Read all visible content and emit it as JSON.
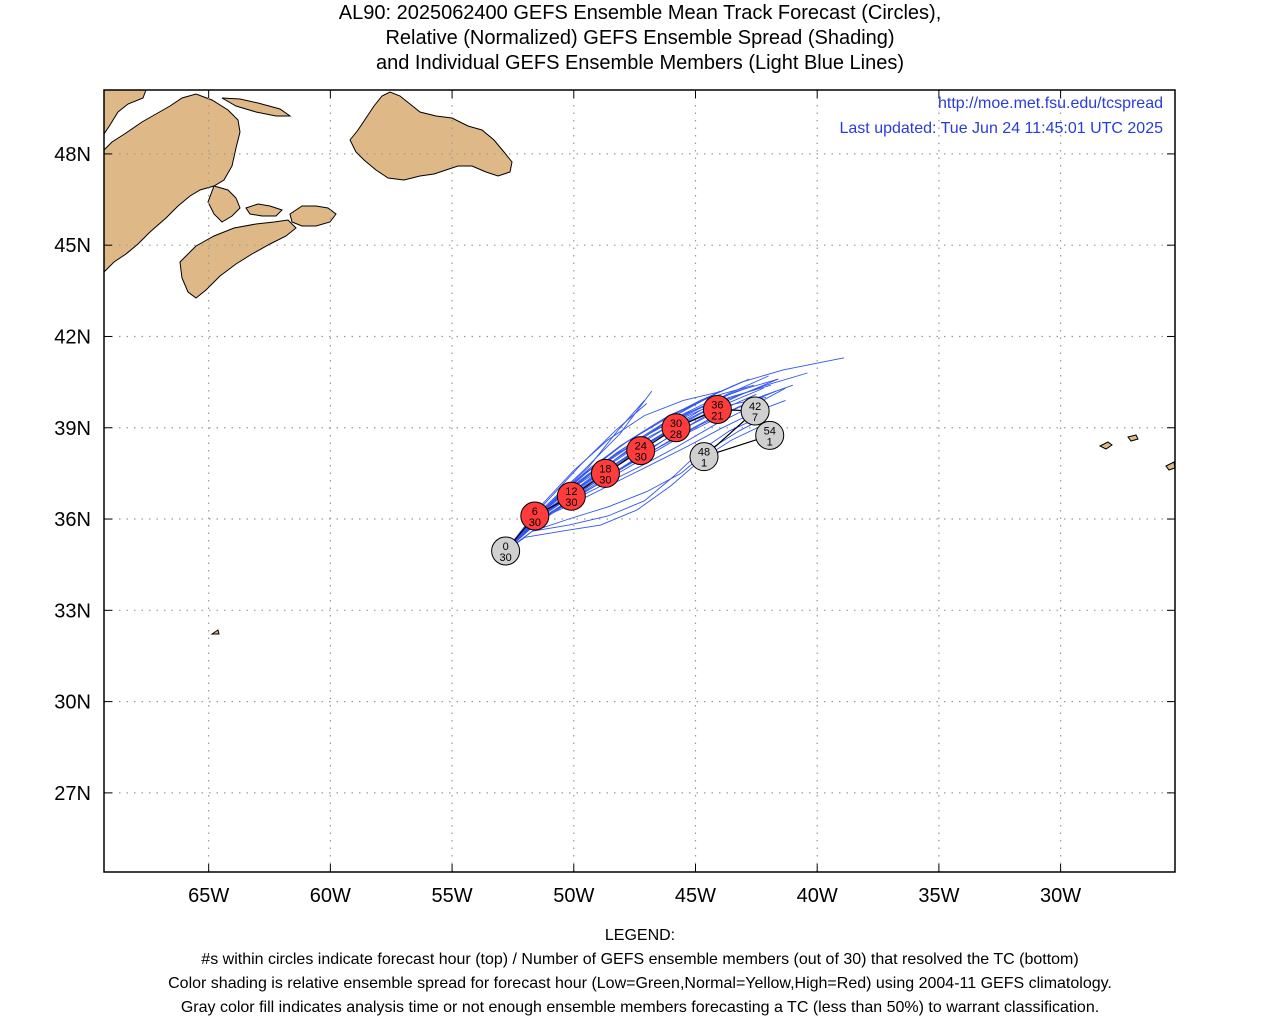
{
  "title": {
    "line1": "AL90: 2025062400 GEFS Ensemble Mean Track Forecast (Circles),",
    "line2": "Relative (Normalized) GEFS Ensemble Spread (Shading)",
    "line3": "and Individual GEFS Ensemble Members (Light Blue Lines)"
  },
  "info": {
    "url": "http://moe.met.fsu.edu/tcspread",
    "updated": "Last updated: Tue Jun 24 11:45:01 UTC 2025"
  },
  "axes": {
    "x_ticks": [
      {
        "label": "65W",
        "lon": -65
      },
      {
        "label": "60W",
        "lon": -60
      },
      {
        "label": "55W",
        "lon": -55
      },
      {
        "label": "50W",
        "lon": -50
      },
      {
        "label": "45W",
        "lon": -45
      },
      {
        "label": "40W",
        "lon": -40
      },
      {
        "label": "35W",
        "lon": -35
      },
      {
        "label": "30W",
        "lon": -30
      }
    ],
    "y_ticks": [
      {
        "label": "48N",
        "lat": 48
      },
      {
        "label": "45N",
        "lat": 45
      },
      {
        "label": "42N",
        "lat": 42
      },
      {
        "label": "39N",
        "lat": 39
      },
      {
        "label": "36N",
        "lat": 36
      },
      {
        "label": "33N",
        "lat": 33
      },
      {
        "label": "30N",
        "lat": 30
      },
      {
        "label": "27N",
        "lat": 27
      }
    ],
    "lon_range": [
      -69.3,
      -25.3
    ],
    "lat_range": [
      24.4,
      50.1
    ]
  },
  "colors": {
    "land": "#deb887",
    "member_line": "#3355ee",
    "spread_high": "#ff3b3b",
    "gray_fill": "#d0d0d0",
    "info_text": "#2a3bdc"
  },
  "track": [
    {
      "hour": "0",
      "members": "30",
      "lon": -52.8,
      "lat": 34.95,
      "fill": "gray"
    },
    {
      "hour": "6",
      "members": "30",
      "lon": -51.6,
      "lat": 36.1,
      "fill": "red"
    },
    {
      "hour": "12",
      "members": "30",
      "lon": -50.1,
      "lat": 36.75,
      "fill": "red"
    },
    {
      "hour": "18",
      "members": "30",
      "lon": -48.7,
      "lat": 37.5,
      "fill": "red"
    },
    {
      "hour": "24",
      "members": "30",
      "lon": -47.25,
      "lat": 38.25,
      "fill": "red"
    },
    {
      "hour": "30",
      "members": "28",
      "lon": -45.8,
      "lat": 39.0,
      "fill": "red"
    },
    {
      "hour": "36",
      "members": "21",
      "lon": -44.1,
      "lat": 39.6,
      "fill": "red"
    },
    {
      "hour": "42",
      "members": "7",
      "lon": -42.55,
      "lat": 39.55,
      "fill": "gray"
    },
    {
      "hour": "48",
      "members": "1",
      "lon": -44.65,
      "lat": 38.05,
      "fill": "gray"
    },
    {
      "hour": "54",
      "members": "1",
      "lon": -41.95,
      "lat": 38.75,
      "fill": "gray"
    }
  ],
  "members": [
    [
      [
        -52.8,
        34.95
      ],
      [
        -51.2,
        36.3
      ],
      [
        -49.6,
        37.3
      ],
      [
        -48.0,
        38.3
      ],
      [
        -46.4,
        39.1
      ],
      [
        -44.6,
        39.8
      ],
      [
        -42.9,
        40.3
      ]
    ],
    [
      [
        -52.8,
        34.95
      ],
      [
        -51.0,
        36.5
      ],
      [
        -49.3,
        37.7
      ],
      [
        -47.7,
        38.6
      ],
      [
        -46.1,
        39.4
      ],
      [
        -44.4,
        40.0
      ],
      [
        -42.6,
        40.4
      ]
    ],
    [
      [
        -52.8,
        34.95
      ],
      [
        -51.3,
        36.2
      ],
      [
        -49.9,
        37.0
      ],
      [
        -48.4,
        37.9
      ],
      [
        -46.9,
        38.8
      ],
      [
        -45.3,
        39.5
      ],
      [
        -43.6,
        40.0
      ],
      [
        -41.9,
        40.4
      ]
    ],
    [
      [
        -52.8,
        34.95
      ],
      [
        -51.5,
        36.0
      ],
      [
        -50.1,
        36.8
      ],
      [
        -48.6,
        37.6
      ],
      [
        -47.1,
        38.4
      ],
      [
        -45.6,
        39.1
      ],
      [
        -43.9,
        39.7
      ],
      [
        -42.1,
        40.0
      ]
    ],
    [
      [
        -52.8,
        34.95
      ],
      [
        -51.1,
        36.4
      ],
      [
        -49.5,
        37.5
      ],
      [
        -47.9,
        38.5
      ],
      [
        -46.2,
        39.3
      ],
      [
        -44.5,
        40.0
      ],
      [
        -42.8,
        40.6
      ]
    ],
    [
      [
        -52.8,
        34.95
      ],
      [
        -51.4,
        36.1
      ],
      [
        -50.0,
        36.9
      ],
      [
        -48.5,
        37.8
      ],
      [
        -47.0,
        38.6
      ],
      [
        -45.4,
        39.4
      ],
      [
        -43.7,
        40.1
      ],
      [
        -42.0,
        40.7
      ]
    ],
    [
      [
        -52.8,
        34.95
      ],
      [
        -51.6,
        35.8
      ],
      [
        -50.3,
        36.5
      ],
      [
        -48.9,
        37.2
      ],
      [
        -47.4,
        38.0
      ],
      [
        -45.9,
        38.8
      ],
      [
        -44.2,
        39.5
      ],
      [
        -42.5,
        40.1
      ]
    ],
    [
      [
        -52.8,
        34.95
      ],
      [
        -51.2,
        36.35
      ],
      [
        -49.7,
        37.4
      ],
      [
        -48.1,
        38.4
      ],
      [
        -46.5,
        39.2
      ],
      [
        -44.8,
        39.9
      ],
      [
        -43.1,
        40.5
      ],
      [
        -41.4,
        40.9
      ],
      [
        -38.9,
        41.3
      ]
    ],
    [
      [
        -52.8,
        34.95
      ],
      [
        -51.3,
        36.25
      ],
      [
        -49.8,
        37.2
      ],
      [
        -48.3,
        38.1
      ],
      [
        -46.7,
        38.9
      ],
      [
        -45.0,
        39.6
      ],
      [
        -43.3,
        40.2
      ],
      [
        -41.6,
        40.6
      ]
    ],
    [
      [
        -52.8,
        34.95
      ],
      [
        -51.5,
        36.0
      ],
      [
        -50.0,
        36.9
      ],
      [
        -48.5,
        37.7
      ],
      [
        -47.0,
        38.5
      ],
      [
        -45.5,
        39.2
      ],
      [
        -43.8,
        39.9
      ],
      [
        -42.1,
        40.4
      ],
      [
        -40.4,
        40.8
      ]
    ],
    [
      [
        -52.8,
        34.95
      ],
      [
        -51.2,
        36.4
      ],
      [
        -49.6,
        37.6
      ],
      [
        -48.1,
        38.8
      ],
      [
        -46.8,
        40.2
      ]
    ],
    [
      [
        -52.8,
        34.95
      ],
      [
        -51.0,
        36.5
      ],
      [
        -49.4,
        37.7
      ],
      [
        -48.2,
        38.9
      ],
      [
        -47.1,
        39.9
      ]
    ],
    [
      [
        -52.8,
        34.95
      ],
      [
        -51.7,
        35.6
      ],
      [
        -50.2,
        35.8
      ],
      [
        -48.6,
        36.1
      ],
      [
        -47.1,
        36.6
      ],
      [
        -45.9,
        37.4
      ],
      [
        -44.7,
        38.3
      ],
      [
        -43.6,
        38.9
      ],
      [
        -42.5,
        39.3
      ]
    ],
    [
      [
        -52.8,
        34.95
      ],
      [
        -52.0,
        35.4
      ],
      [
        -50.5,
        35.6
      ],
      [
        -48.9,
        35.8
      ],
      [
        -47.4,
        36.3
      ],
      [
        -46.0,
        37.1
      ],
      [
        -44.7,
        38.0
      ],
      [
        -43.5,
        38.6
      ],
      [
        -42.2,
        39.1
      ]
    ],
    [
      [
        -52.8,
        34.95
      ],
      [
        -51.7,
        35.6
      ],
      [
        -50.2,
        36.0
      ],
      [
        -48.6,
        36.4
      ],
      [
        -47.0,
        36.9
      ],
      [
        -45.6,
        37.5
      ],
      [
        -44.4,
        38.3
      ],
      [
        -43.2,
        38.9
      ],
      [
        -42.0,
        39.4
      ]
    ],
    [
      [
        -52.8,
        34.95
      ],
      [
        -51.4,
        36.0
      ],
      [
        -49.8,
        36.6
      ],
      [
        -48.3,
        37.2
      ],
      [
        -46.8,
        37.8
      ],
      [
        -45.3,
        38.4
      ],
      [
        -43.9,
        39.0
      ],
      [
        -42.6,
        39.5
      ],
      [
        -41.3,
        39.9
      ]
    ],
    [
      [
        -52.8,
        34.95
      ],
      [
        -51.6,
        35.9
      ],
      [
        -50.1,
        36.6
      ],
      [
        -48.6,
        37.2
      ],
      [
        -47.1,
        37.8
      ],
      [
        -45.7,
        38.4
      ],
      [
        -44.2,
        39.1
      ],
      [
        -42.7,
        39.7
      ],
      [
        -41.3,
        40.3
      ]
    ],
    [
      [
        -52.8,
        34.95
      ],
      [
        -51.3,
        36.1
      ],
      [
        -49.8,
        36.9
      ],
      [
        -48.2,
        37.6
      ],
      [
        -46.7,
        38.4
      ],
      [
        -45.2,
        39.1
      ],
      [
        -43.7,
        39.8
      ],
      [
        -42.2,
        40.3
      ]
    ],
    [
      [
        -52.8,
        34.95
      ],
      [
        -51.1,
        36.3
      ],
      [
        -49.5,
        37.2
      ],
      [
        -47.9,
        38.0
      ],
      [
        -46.3,
        38.8
      ],
      [
        -44.7,
        39.5
      ],
      [
        -43.1,
        40.1
      ],
      [
        -41.6,
        40.6
      ]
    ],
    [
      [
        -52.8,
        34.95
      ],
      [
        -51.5,
        35.9
      ],
      [
        -50.0,
        36.7
      ],
      [
        -48.4,
        37.4
      ],
      [
        -46.9,
        38.1
      ],
      [
        -45.4,
        38.8
      ],
      [
        -43.9,
        39.4
      ],
      [
        -42.4,
        40.0
      ],
      [
        -41.0,
        40.4
      ]
    ],
    [
      [
        -52.8,
        34.95
      ],
      [
        -51.4,
        36.2
      ],
      [
        -49.9,
        37.1
      ],
      [
        -48.4,
        37.9
      ],
      [
        -46.9,
        38.7
      ],
      [
        -45.3,
        39.4
      ],
      [
        -43.6,
        40.0
      ]
    ],
    [
      [
        -52.8,
        34.95
      ],
      [
        -51.2,
        36.2
      ],
      [
        -49.6,
        37.0
      ],
      [
        -48.0,
        37.7
      ],
      [
        -46.4,
        38.4
      ],
      [
        -44.8,
        39.1
      ],
      [
        -43.2,
        39.7
      ],
      [
        -41.7,
        40.2
      ]
    ],
    [
      [
        -52.8,
        34.95
      ],
      [
        -51.6,
        35.9
      ],
      [
        -50.2,
        36.6
      ],
      [
        -48.8,
        37.4
      ],
      [
        -47.3,
        38.3
      ],
      [
        -45.8,
        39.1
      ],
      [
        -44.3,
        39.8
      ]
    ],
    [
      [
        -52.8,
        34.95
      ],
      [
        -51.3,
        36.3
      ],
      [
        -49.7,
        37.3
      ],
      [
        -48.2,
        38.2
      ],
      [
        -46.6,
        39.0
      ],
      [
        -45.0,
        39.8
      ],
      [
        -43.4,
        40.4
      ]
    ],
    [
      [
        -52.8,
        34.95
      ],
      [
        -51.5,
        36.1
      ],
      [
        -50.1,
        37.0
      ],
      [
        -48.6,
        37.9
      ],
      [
        -47.1,
        38.7
      ],
      [
        -45.6,
        39.5
      ],
      [
        -44.0,
        40.2
      ]
    ],
    [
      [
        -52.8,
        34.95
      ],
      [
        -51.7,
        35.8
      ],
      [
        -50.4,
        36.5
      ],
      [
        -49.0,
        37.2
      ],
      [
        -47.5,
        37.9
      ],
      [
        -46.0,
        38.6
      ],
      [
        -44.4,
        39.3
      ],
      [
        -42.8,
        39.8
      ]
    ],
    [
      [
        -52.8,
        34.95
      ],
      [
        -51.2,
        36.5
      ],
      [
        -49.7,
        37.8
      ],
      [
        -48.3,
        38.9
      ],
      [
        -47.0,
        39.8
      ]
    ],
    [
      [
        -52.8,
        34.95
      ],
      [
        -51.4,
        36.4
      ],
      [
        -50.0,
        37.6
      ],
      [
        -48.6,
        38.6
      ],
      [
        -47.1,
        39.4
      ],
      [
        -45.5,
        39.9
      ],
      [
        -43.9,
        40.2
      ]
    ]
  ],
  "legend": {
    "heading": "LEGEND:",
    "line1": "#s within circles indicate forecast hour (top) / Number of GEFS ensemble members (out of 30) that resolved the TC (bottom)",
    "line2": "Color shading is relative ensemble spread for forecast hour (Low=Green,Normal=Yellow,High=Red) using 2004-11 GEFS climatology.",
    "line3": "Gray color fill indicates analysis time or not enough ensemble members forecasting a TC (less than 50%) to warrant classification."
  }
}
